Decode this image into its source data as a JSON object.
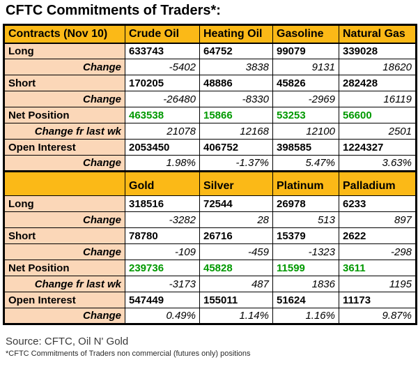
{
  "title": "CFTC Commitments of Traders*:",
  "colors": {
    "header_bg": "#FBB917",
    "label_bg": "#FBD7B8",
    "net_green": "#009900",
    "border": "#000000"
  },
  "sections": [
    {
      "header": [
        "Contracts (Nov 10)",
        "Crude Oil",
        "Heating Oil",
        "Gasoline",
        "Natural Gas"
      ],
      "rows": [
        {
          "label": "Long",
          "style": "value",
          "values": [
            "633743",
            "64752",
            "99079",
            "339028"
          ]
        },
        {
          "label": "Change",
          "style": "change",
          "values": [
            "-5402",
            "3838",
            "9131",
            "18620"
          ]
        },
        {
          "label": "Short",
          "style": "value",
          "values": [
            "170205",
            "48886",
            "45826",
            "282428"
          ]
        },
        {
          "label": "Change",
          "style": "change",
          "values": [
            "-26480",
            "-8330",
            "-2969",
            "16119"
          ]
        },
        {
          "label": "Net Position",
          "style": "net",
          "values": [
            "463538",
            "15866",
            "53253",
            "56600"
          ]
        },
        {
          "label": "Change fr last wk",
          "style": "change",
          "values": [
            "21078",
            "12168",
            "12100",
            "2501"
          ]
        },
        {
          "label": "Open Interest",
          "style": "value",
          "values": [
            "2053450",
            "406752",
            "398585",
            "1224327"
          ]
        },
        {
          "label": "Change",
          "style": "change",
          "values": [
            "1.98%",
            "-1.37%",
            "5.47%",
            "3.63%"
          ]
        }
      ]
    },
    {
      "header": [
        "",
        "Gold",
        "Silver",
        "Platinum",
        "Palladium"
      ],
      "rows": [
        {
          "label": "Long",
          "style": "value",
          "values": [
            "318516",
            "72544",
            "26978",
            "6233"
          ]
        },
        {
          "label": "Change",
          "style": "change",
          "values": [
            "-3282",
            "28",
            "513",
            "897"
          ]
        },
        {
          "label": "Short",
          "style": "value",
          "values": [
            "78780",
            "26716",
            "15379",
            "2622"
          ]
        },
        {
          "label": "Change",
          "style": "change",
          "values": [
            "-109",
            "-459",
            "-1323",
            "-298"
          ]
        },
        {
          "label": "Net Position",
          "style": "net",
          "values": [
            "239736",
            "45828",
            "11599",
            "3611"
          ]
        },
        {
          "label": "Change fr last wk",
          "style": "change",
          "values": [
            "-3173",
            "487",
            "1836",
            "1195"
          ]
        },
        {
          "label": "Open Interest",
          "style": "value",
          "values": [
            "547449",
            "155011",
            "51624",
            "11173"
          ]
        },
        {
          "label": "Change",
          "style": "change",
          "values": [
            "0.49%",
            "1.14%",
            "1.16%",
            "9.87%"
          ]
        }
      ]
    }
  ],
  "footer": {
    "source": "Source: CFTC, Oil N' Gold",
    "note": "*CFTC Commitments of Traders non commercial (futures only) positions"
  },
  "chart_data": {
    "type": "table",
    "title": "CFTC Commitments of Traders (Nov 10) - non commercial (futures only) positions",
    "columns": [
      "Crude Oil",
      "Heating Oil",
      "Gasoline",
      "Natural Gas",
      "Gold",
      "Silver",
      "Platinum",
      "Palladium"
    ],
    "series": [
      {
        "name": "Long",
        "values": [
          633743,
          64752,
          99079,
          339028,
          318516,
          72544,
          26978,
          6233
        ]
      },
      {
        "name": "Long Change",
        "values": [
          -5402,
          3838,
          9131,
          18620,
          -3282,
          28,
          513,
          897
        ]
      },
      {
        "name": "Short",
        "values": [
          170205,
          48886,
          45826,
          282428,
          78780,
          26716,
          15379,
          2622
        ]
      },
      {
        "name": "Short Change",
        "values": [
          -26480,
          -8330,
          -2969,
          16119,
          -109,
          -459,
          -1323,
          -298
        ]
      },
      {
        "name": "Net Position",
        "values": [
          463538,
          15866,
          53253,
          56600,
          239736,
          45828,
          11599,
          3611
        ]
      },
      {
        "name": "Net Position Change fr last wk",
        "values": [
          21078,
          12168,
          12100,
          2501,
          -3173,
          487,
          1836,
          1195
        ]
      },
      {
        "name": "Open Interest",
        "values": [
          2053450,
          406752,
          398585,
          1224327,
          547449,
          155011,
          51624,
          11173
        ]
      },
      {
        "name": "Open Interest Change",
        "values": [
          "1.98%",
          "-1.37%",
          "5.47%",
          "3.63%",
          "0.49%",
          "1.14%",
          "1.16%",
          "9.87%"
        ]
      }
    ]
  }
}
